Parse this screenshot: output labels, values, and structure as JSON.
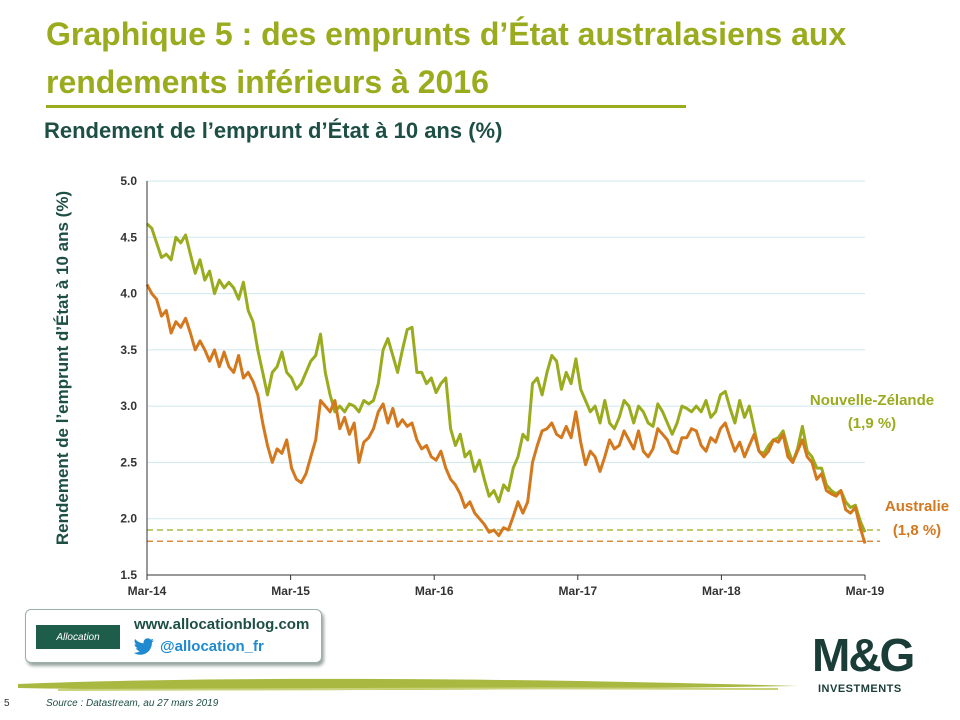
{
  "slide": {
    "title": "Graphique 5 : des emprunts d’État australasiens aux rendements  inférieurs à 2016",
    "page_number": "5",
    "source": "Source : Datastream, au 27 mars 2019"
  },
  "footer": {
    "logo_text": "Allocation",
    "website": "www.allocationblog.com",
    "twitter_handle": "@allocation_fr",
    "brand_logo": "M&G",
    "brand_sub": "INVESTMENTS"
  },
  "colors": {
    "nz": "#9aab1e",
    "au": "#d4781e",
    "title": "#9aab1e",
    "dark": "#1d4f45"
  },
  "chart_data": {
    "type": "line",
    "title": "Rendement de l’emprunt d’État à 10 ans (%)",
    "ylabel": "Rendement de l’emprunt d’État à 10 ans (%)",
    "xlabel": "",
    "x_ticks": [
      "Mar-14",
      "Mar-15",
      "Mar-16",
      "Mar-17",
      "Mar-18",
      "Mar-19"
    ],
    "ylim": [
      1.5,
      5.0
    ],
    "y_ticks": [
      "1.5",
      "2.0",
      "2.5",
      "3.0",
      "3.5",
      "4.0",
      "4.5",
      "5.0"
    ],
    "grid": true,
    "x_unit": "months since Mar-14",
    "series": [
      {
        "name": "Nouvelle-Zélande",
        "label_line1": "Nouvelle-Zélande",
        "label_line2": "(1,9 %)",
        "reference_level": 1.9,
        "color": "#9aab1e",
        "points": [
          [
            0,
            4.62
          ],
          [
            0.5,
            4.58
          ],
          [
            1,
            4.45
          ],
          [
            1.5,
            4.32
          ],
          [
            2,
            4.35
          ],
          [
            2.5,
            4.3
          ],
          [
            3,
            4.5
          ],
          [
            3.5,
            4.45
          ],
          [
            4,
            4.52
          ],
          [
            4.5,
            4.35
          ],
          [
            5,
            4.18
          ],
          [
            5.5,
            4.3
          ],
          [
            6,
            4.12
          ],
          [
            6.5,
            4.2
          ],
          [
            7,
            4.0
          ],
          [
            7.5,
            4.12
          ],
          [
            8,
            4.05
          ],
          [
            8.5,
            4.1
          ],
          [
            9,
            4.05
          ],
          [
            9.5,
            3.95
          ],
          [
            10,
            4.1
          ],
          [
            10.5,
            3.85
          ],
          [
            11,
            3.75
          ],
          [
            11.5,
            3.5
          ],
          [
            12,
            3.3
          ],
          [
            12.5,
            3.1
          ],
          [
            13,
            3.3
          ],
          [
            13.5,
            3.35
          ],
          [
            14,
            3.48
          ],
          [
            14.5,
            3.3
          ],
          [
            15,
            3.25
          ],
          [
            15.5,
            3.15
          ],
          [
            16,
            3.2
          ],
          [
            16.5,
            3.3
          ],
          [
            17,
            3.4
          ],
          [
            17.5,
            3.45
          ],
          [
            18,
            3.64
          ],
          [
            18.5,
            3.3
          ],
          [
            19,
            3.1
          ],
          [
            19.5,
            2.95
          ],
          [
            20,
            3.0
          ],
          [
            20.5,
            2.95
          ],
          [
            21,
            3.02
          ],
          [
            21.5,
            3.0
          ],
          [
            22,
            2.95
          ],
          [
            22.5,
            3.05
          ],
          [
            23,
            3.02
          ],
          [
            23.5,
            3.05
          ],
          [
            24,
            3.2
          ],
          [
            24.5,
            3.5
          ],
          [
            25,
            3.6
          ],
          [
            25.5,
            3.45
          ],
          [
            26,
            3.3
          ],
          [
            26.5,
            3.5
          ],
          [
            27,
            3.68
          ],
          [
            27.5,
            3.7
          ],
          [
            28,
            3.3
          ],
          [
            28.5,
            3.3
          ],
          [
            29,
            3.2
          ],
          [
            29.5,
            3.25
          ],
          [
            30,
            3.12
          ],
          [
            30.5,
            3.2
          ],
          [
            31,
            3.25
          ],
          [
            31.5,
            2.8
          ],
          [
            32,
            2.65
          ],
          [
            32.5,
            2.75
          ],
          [
            33,
            2.55
          ],
          [
            33.5,
            2.6
          ],
          [
            34,
            2.42
          ],
          [
            34.5,
            2.52
          ],
          [
            35,
            2.35
          ],
          [
            35.5,
            2.2
          ],
          [
            36,
            2.25
          ],
          [
            36.5,
            2.15
          ],
          [
            37,
            2.3
          ],
          [
            37.5,
            2.25
          ],
          [
            38,
            2.45
          ],
          [
            38.5,
            2.55
          ],
          [
            39,
            2.75
          ],
          [
            39.5,
            2.7
          ],
          [
            40,
            3.2
          ],
          [
            40.5,
            3.25
          ],
          [
            41,
            3.1
          ],
          [
            41.5,
            3.3
          ],
          [
            42,
            3.45
          ],
          [
            42.5,
            3.4
          ],
          [
            43,
            3.15
          ],
          [
            43.5,
            3.3
          ],
          [
            44,
            3.2
          ],
          [
            44.5,
            3.42
          ],
          [
            45,
            3.15
          ],
          [
            45.5,
            3.05
          ],
          [
            46,
            2.95
          ],
          [
            46.5,
            3.0
          ],
          [
            47,
            2.85
          ],
          [
            47.5,
            3.05
          ],
          [
            48,
            2.85
          ],
          [
            48.5,
            2.8
          ],
          [
            49,
            2.9
          ],
          [
            49.5,
            3.05
          ],
          [
            50,
            3.0
          ],
          [
            50.5,
            2.85
          ],
          [
            51,
            3.0
          ],
          [
            51.5,
            2.95
          ],
          [
            52,
            2.85
          ],
          [
            52.5,
            2.82
          ],
          [
            53,
            3.02
          ],
          [
            53.5,
            2.95
          ],
          [
            54,
            2.85
          ],
          [
            54.5,
            2.75
          ],
          [
            55,
            2.85
          ],
          [
            55.5,
            3.0
          ],
          [
            56,
            2.98
          ],
          [
            56.5,
            2.95
          ],
          [
            57,
            3.0
          ],
          [
            57.5,
            2.95
          ],
          [
            58,
            3.05
          ],
          [
            58.5,
            2.9
          ],
          [
            59,
            2.95
          ],
          [
            59.5,
            3.1
          ],
          [
            60,
            3.13
          ],
          [
            60.5,
            2.98
          ],
          [
            61,
            2.85
          ],
          [
            61.5,
            3.05
          ],
          [
            62,
            2.9
          ],
          [
            62.5,
            3.0
          ],
          [
            63,
            2.8
          ],
          [
            63.5,
            2.6
          ],
          [
            64,
            2.58
          ],
          [
            64.5,
            2.65
          ],
          [
            65,
            2.7
          ],
          [
            65.5,
            2.72
          ],
          [
            66,
            2.78
          ],
          [
            66.5,
            2.62
          ],
          [
            67,
            2.5
          ],
          [
            67.5,
            2.62
          ],
          [
            68,
            2.82
          ],
          [
            68.5,
            2.6
          ],
          [
            69,
            2.55
          ],
          [
            69.5,
            2.45
          ],
          [
            70,
            2.45
          ],
          [
            70.5,
            2.3
          ],
          [
            71,
            2.25
          ],
          [
            71.5,
            2.22
          ],
          [
            72,
            2.25
          ],
          [
            72.5,
            2.15
          ],
          [
            73,
            2.1
          ],
          [
            73.5,
            2.12
          ],
          [
            74,
            1.98
          ],
          [
            74.5,
            1.88
          ]
        ]
      },
      {
        "name": "Australie",
        "label_line1": "Australie",
        "label_line2": "(1,8 %)",
        "reference_level": 1.8,
        "color": "#d4781e",
        "points": [
          [
            0,
            4.08
          ],
          [
            0.5,
            4.0
          ],
          [
            1,
            3.95
          ],
          [
            1.5,
            3.8
          ],
          [
            2,
            3.85
          ],
          [
            2.5,
            3.65
          ],
          [
            3,
            3.75
          ],
          [
            3.5,
            3.7
          ],
          [
            4,
            3.78
          ],
          [
            4.5,
            3.65
          ],
          [
            5,
            3.5
          ],
          [
            5.5,
            3.58
          ],
          [
            6,
            3.5
          ],
          [
            6.5,
            3.4
          ],
          [
            7,
            3.5
          ],
          [
            7.5,
            3.35
          ],
          [
            8,
            3.48
          ],
          [
            8.5,
            3.35
          ],
          [
            9,
            3.3
          ],
          [
            9.5,
            3.45
          ],
          [
            10,
            3.25
          ],
          [
            10.5,
            3.3
          ],
          [
            11,
            3.22
          ],
          [
            11.5,
            3.1
          ],
          [
            12,
            2.85
          ],
          [
            12.5,
            2.65
          ],
          [
            13,
            2.5
          ],
          [
            13.5,
            2.62
          ],
          [
            14,
            2.58
          ],
          [
            14.5,
            2.7
          ],
          [
            15,
            2.45
          ],
          [
            15.5,
            2.35
          ],
          [
            16,
            2.32
          ],
          [
            16.5,
            2.4
          ],
          [
            17,
            2.55
          ],
          [
            17.5,
            2.7
          ],
          [
            18,
            3.05
          ],
          [
            18.5,
            3.0
          ],
          [
            19,
            2.95
          ],
          [
            19.5,
            3.05
          ],
          [
            20,
            2.8
          ],
          [
            20.5,
            2.9
          ],
          [
            21,
            2.75
          ],
          [
            21.5,
            2.85
          ],
          [
            22,
            2.5
          ],
          [
            22.5,
            2.68
          ],
          [
            23,
            2.72
          ],
          [
            23.5,
            2.8
          ],
          [
            24,
            2.95
          ],
          [
            24.5,
            3.02
          ],
          [
            25,
            2.85
          ],
          [
            25.5,
            2.98
          ],
          [
            26,
            2.82
          ],
          [
            26.5,
            2.88
          ],
          [
            27,
            2.82
          ],
          [
            27.5,
            2.85
          ],
          [
            28,
            2.7
          ],
          [
            28.5,
            2.62
          ],
          [
            29,
            2.65
          ],
          [
            29.5,
            2.55
          ],
          [
            30,
            2.52
          ],
          [
            30.5,
            2.6
          ],
          [
            31,
            2.45
          ],
          [
            31.5,
            2.35
          ],
          [
            32,
            2.3
          ],
          [
            32.5,
            2.22
          ],
          [
            33,
            2.1
          ],
          [
            33.5,
            2.15
          ],
          [
            34,
            2.05
          ],
          [
            34.5,
            2.0
          ],
          [
            35,
            1.95
          ],
          [
            35.5,
            1.88
          ],
          [
            36,
            1.9
          ],
          [
            36.5,
            1.85
          ],
          [
            37,
            1.92
          ],
          [
            37.5,
            1.9
          ],
          [
            38,
            2.02
          ],
          [
            38.5,
            2.15
          ],
          [
            39,
            2.05
          ],
          [
            39.5,
            2.15
          ],
          [
            40,
            2.5
          ],
          [
            40.5,
            2.65
          ],
          [
            41,
            2.78
          ],
          [
            41.5,
            2.8
          ],
          [
            42,
            2.85
          ],
          [
            42.5,
            2.75
          ],
          [
            43,
            2.72
          ],
          [
            43.5,
            2.82
          ],
          [
            44,
            2.72
          ],
          [
            44.5,
            2.95
          ],
          [
            45,
            2.68
          ],
          [
            45.5,
            2.48
          ],
          [
            46,
            2.6
          ],
          [
            46.5,
            2.55
          ],
          [
            47,
            2.42
          ],
          [
            47.5,
            2.55
          ],
          [
            48,
            2.7
          ],
          [
            48.5,
            2.62
          ],
          [
            49,
            2.65
          ],
          [
            49.5,
            2.78
          ],
          [
            50,
            2.7
          ],
          [
            50.5,
            2.62
          ],
          [
            51,
            2.78
          ],
          [
            51.5,
            2.6
          ],
          [
            52,
            2.55
          ],
          [
            52.5,
            2.62
          ],
          [
            53,
            2.8
          ],
          [
            53.5,
            2.75
          ],
          [
            54,
            2.7
          ],
          [
            54.5,
            2.6
          ],
          [
            55,
            2.58
          ],
          [
            55.5,
            2.72
          ],
          [
            56,
            2.72
          ],
          [
            56.5,
            2.8
          ],
          [
            57,
            2.78
          ],
          [
            57.5,
            2.65
          ],
          [
            58,
            2.6
          ],
          [
            58.5,
            2.72
          ],
          [
            59,
            2.68
          ],
          [
            59.5,
            2.8
          ],
          [
            60,
            2.85
          ],
          [
            60.5,
            2.72
          ],
          [
            61,
            2.6
          ],
          [
            61.5,
            2.68
          ],
          [
            62,
            2.55
          ],
          [
            62.5,
            2.65
          ],
          [
            63,
            2.75
          ],
          [
            63.5,
            2.6
          ],
          [
            64,
            2.55
          ],
          [
            64.5,
            2.6
          ],
          [
            65,
            2.7
          ],
          [
            65.5,
            2.68
          ],
          [
            66,
            2.75
          ],
          [
            66.5,
            2.55
          ],
          [
            67,
            2.5
          ],
          [
            67.5,
            2.6
          ],
          [
            68,
            2.7
          ],
          [
            68.5,
            2.55
          ],
          [
            69,
            2.5
          ],
          [
            69.5,
            2.35
          ],
          [
            70,
            2.4
          ],
          [
            70.5,
            2.25
          ],
          [
            71,
            2.22
          ],
          [
            71.5,
            2.2
          ],
          [
            72,
            2.25
          ],
          [
            72.5,
            2.08
          ],
          [
            73,
            2.05
          ],
          [
            73.5,
            2.1
          ],
          [
            74,
            1.92
          ],
          [
            74.5,
            1.78
          ]
        ]
      }
    ]
  }
}
